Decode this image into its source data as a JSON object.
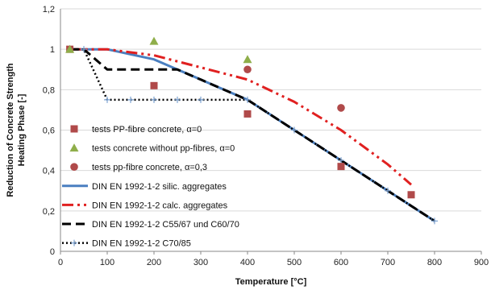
{
  "chart_data": {
    "type": "line",
    "xlabel": "Temperature [°C]",
    "ylabel_lines": [
      "Reduction of Concrete Strength",
      "Heating Phase [-]"
    ],
    "xlim": [
      0,
      900
    ],
    "ylim": [
      0,
      1.2
    ],
    "x_ticks": [
      "0",
      "100",
      "200",
      "300",
      "400",
      "500",
      "600",
      "700",
      "800",
      "900"
    ],
    "y_ticks": [
      "0",
      "0,2",
      "0,4",
      "0,6",
      "0,8",
      "1",
      "1,2"
    ],
    "grid": "horizontal",
    "legend_position": "bottom-left",
    "series": [
      {
        "name": "tests PP-fibre concrete, α=0",
        "kind": "markers",
        "marker": "square",
        "color": "#b04a4a",
        "x": [
          20,
          200,
          400,
          600,
          750
        ],
        "y": [
          1.0,
          0.82,
          0.68,
          0.42,
          0.28
        ]
      },
      {
        "name": "tests concrete without pp-fibres, α=0",
        "kind": "markers",
        "marker": "triangle",
        "color": "#8fae4a",
        "x": [
          20,
          200,
          400
        ],
        "y": [
          1.0,
          1.04,
          0.95
        ]
      },
      {
        "name": "tests pp-fibre concrete, α=0,3",
        "kind": "markers",
        "marker": "circle",
        "color": "#b04a4a",
        "x": [
          400,
          600
        ],
        "y": [
          0.9,
          0.71
        ]
      },
      {
        "name": "DIN EN 1992-1-2 silic. aggregates",
        "kind": "line",
        "style": "solid",
        "color": "#4a7fc0",
        "width": 3,
        "x": [
          20,
          100,
          200,
          300,
          400,
          500,
          600,
          700,
          800
        ],
        "y": [
          1.0,
          1.0,
          0.95,
          0.85,
          0.75,
          0.6,
          0.45,
          0.3,
          0.15
        ]
      },
      {
        "name": "DIN EN 1992-1-2 calc. aggregates",
        "kind": "line",
        "style": "dashdotdot",
        "color": "#e02020",
        "width": 3,
        "x": [
          20,
          100,
          200,
          300,
          400,
          500,
          600,
          700,
          750
        ],
        "y": [
          1.0,
          1.0,
          0.97,
          0.91,
          0.85,
          0.74,
          0.6,
          0.43,
          0.33
        ]
      },
      {
        "name": "DIN EN 1992-1-2 C55/67 und C60/70",
        "kind": "line",
        "style": "dashed",
        "color": "#000000",
        "width": 3,
        "x": [
          20,
          50,
          100,
          250,
          300,
          400,
          500,
          600,
          700,
          800
        ],
        "y": [
          1.0,
          1.0,
          0.9,
          0.9,
          0.85,
          0.75,
          0.6,
          0.45,
          0.3,
          0.15
        ]
      },
      {
        "name": "DIN EN 1992-1-2 C70/85",
        "kind": "line",
        "style": "dotted",
        "color": "#000000",
        "width": 2.5,
        "marker": "plus",
        "marker_color": "#7da3d3",
        "x": [
          20,
          50,
          100,
          150,
          200,
          250,
          300,
          400,
          500,
          600,
          700,
          800
        ],
        "y": [
          1.0,
          1.0,
          0.75,
          0.75,
          0.75,
          0.75,
          0.75,
          0.75,
          0.6,
          0.45,
          0.3,
          0.15
        ]
      }
    ]
  }
}
